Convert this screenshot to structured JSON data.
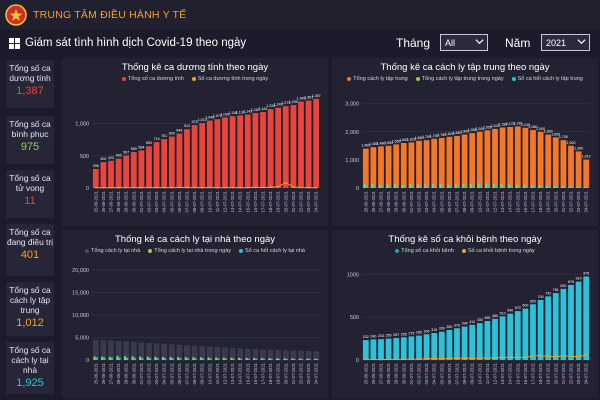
{
  "header": {
    "app_title": "TRUNG TÂM ĐIỀU HÀNH Y TẾ",
    "page_title": "Giám sát tình hình dịch Covid-19 theo ngày",
    "month_label": "Tháng",
    "month_value": "All",
    "year_label": "Năm",
    "year_value": "2021"
  },
  "kpis": [
    {
      "label": "Tổng số ca dương tính",
      "value": "1,387",
      "color": "#e8453c"
    },
    {
      "label": "Tổng số ca bình phục",
      "value": "975",
      "color": "#8fd14f"
    },
    {
      "label": "Tổng số ca tử vong",
      "value": "11",
      "color": "#e8453c"
    },
    {
      "label": "Tổng số ca đang điều trị",
      "value": "401",
      "color": "#f4a124"
    },
    {
      "label": "Tổng số ca cách ly tập trung",
      "value": "1,012",
      "color": "#f4a124"
    },
    {
      "label": "Tổng số ca cách ly tại nhà",
      "value": "1,925",
      "color": "#2dc2d8"
    }
  ],
  "colors": {
    "positive": "#e8453c",
    "positive_today": "#f4a124",
    "quarantine": "#f4772a",
    "quarantine_today": "#8fd14f",
    "released": "#2dc2d8",
    "home": "#3a3a4e",
    "home_today": "#8fd14f",
    "recovered": "#1da4b8",
    "recovered_today": "#f4a124"
  },
  "chart_data": [
    {
      "type": "bar",
      "title": "Thống kê ca dương tính theo ngày",
      "series": [
        {
          "name": "Tổng số ca dương tính",
          "values": [
            296,
            402,
            422,
            456,
            507,
            559,
            584,
            650,
            714,
            761,
            800,
            848,
            914,
            979,
            1010,
            1048,
            1070,
            1099,
            1118,
            1130,
            1143,
            1167,
            1181,
            1228,
            1249,
            1273,
            1290,
            1345,
            1361,
            1387
          ]
        },
        {
          "name": "Số ca dương tính trong ngày",
          "values": [
            5,
            4,
            6,
            5,
            7,
            6,
            3,
            8,
            6,
            7,
            5,
            9,
            6,
            7,
            5,
            8,
            4,
            6,
            7,
            5,
            6,
            9,
            8,
            12,
            20,
            84,
            15,
            8,
            6,
            4
          ]
        }
      ],
      "data_labels": [
        "296",
        "402",
        "422",
        "456",
        "507",
        "559",
        "584",
        "650",
        "714",
        "761",
        "800",
        "848",
        "914",
        "979",
        "1,010",
        "1,048",
        "1,070",
        "1,099",
        "1,118",
        "1,130",
        "1,143",
        "1,167",
        "1,181",
        "1,228",
        "1,249",
        "1,273",
        "1,290",
        "1,345",
        "1,361",
        "1,387"
      ],
      "yticks": [
        "0",
        "500",
        "1,000"
      ],
      "ylim": [
        0,
        1400
      ]
    },
    {
      "type": "bar",
      "title": "Thống kê ca cách ly tập trung theo ngày",
      "series": [
        {
          "name": "Tổng cách ly tập trung",
          "values": [
            1400,
            1450,
            1480,
            1500,
            1550,
            1600,
            1620,
            1680,
            1700,
            1750,
            1780,
            1820,
            1850,
            1900,
            1950,
            2000,
            2050,
            2100,
            2150,
            2170,
            2190,
            2140,
            2060,
            2000,
            1900,
            1800,
            1700,
            1500,
            1300,
            1012
          ]
        },
        {
          "name": "Tổng cách ly tập trung trong ngày",
          "values": [
            137,
            150,
            120,
            130,
            140,
            110,
            135,
            125,
            130,
            140,
            150,
            120,
            130,
            140,
            150,
            160,
            170,
            150,
            140,
            130,
            120,
            110,
            100,
            90,
            80,
            70,
            60,
            50,
            40,
            30
          ]
        },
        {
          "name": "Số ca hết cách ly tập trung",
          "values": [
            100,
            110,
            95,
            105,
            100,
            90,
            95,
            100,
            90,
            110,
            105,
            95,
            100,
            110,
            120,
            130,
            140,
            120,
            110,
            100,
            95,
            90,
            85,
            80,
            75,
            70,
            65,
            60,
            55,
            50
          ]
        }
      ],
      "data_labels": [
        "1,400",
        "1,450",
        "1,480",
        "1,500",
        "1,550",
        "1,600",
        "1,620",
        "1,680",
        "1,700",
        "1,750",
        "1,780",
        "1,820",
        "1,850",
        "1,900",
        "1,950",
        "2,000",
        "2,050",
        "2,100",
        "2,150",
        "2,170",
        "2,190",
        "2,140",
        "2,060",
        "2,000",
        "1,900",
        "1,800",
        "1,700",
        "1,500",
        "1,300",
        "1,012"
      ],
      "yticks": [
        "0",
        "1,000",
        "2,000",
        "3,000"
      ],
      "ylim": [
        0,
        3200
      ]
    },
    {
      "type": "bar",
      "title": "Thống kê ca cách ly tại nhà theo ngày",
      "series": [
        {
          "name": "Tổng cách ly tại nhà",
          "values": [
            4500,
            4400,
            4300,
            4200,
            4100,
            4000,
            3900,
            3800,
            3700,
            3600,
            3500,
            3400,
            3300,
            3200,
            3100,
            3000,
            2900,
            2800,
            2700,
            2600,
            2500,
            2400,
            2300,
            2250,
            2200,
            2150,
            2100,
            2050,
            2000,
            1925
          ]
        },
        {
          "name": "Tổng cách ly tại nhà trong ngày",
          "values": [
            800,
            750,
            700,
            900,
            850,
            800,
            760,
            720,
            700,
            680,
            650,
            640,
            620,
            600,
            580,
            560,
            540,
            520,
            500,
            480,
            460,
            440,
            420,
            400,
            380,
            360,
            340,
            320,
            300,
            280
          ]
        },
        {
          "name": "Số ca hết cách ly tại nhà",
          "values": [
            600,
            580,
            560,
            540,
            520,
            500,
            480,
            460,
            440,
            420,
            400,
            390,
            380,
            370,
            360,
            350,
            340,
            330,
            320,
            310,
            300,
            290,
            280,
            270,
            260,
            250,
            240,
            230,
            220,
            210
          ]
        }
      ],
      "yticks": [
        "0",
        "5,000",
        "10,000",
        "15,000",
        "20,000"
      ],
      "ylim": [
        0,
        20000
      ]
    },
    {
      "type": "bar",
      "title": "Thống kê số ca khỏi bệnh theo ngày",
      "series": [
        {
          "name": "Tổng số ca khỏi bệnh",
          "values": [
            232,
            240,
            243,
            250,
            257,
            265,
            275,
            285,
            300,
            315,
            330,
            350,
            370,
            390,
            410,
            430,
            455,
            480,
            510,
            540,
            570,
            600,
            650,
            700,
            742,
            781,
            830,
            876,
            914,
            975
          ]
        },
        {
          "name": "Số ca khỏi bệnh trong ngày",
          "values": [
            8,
            7,
            5,
            7,
            7,
            8,
            10,
            10,
            15,
            15,
            15,
            20,
            20,
            20,
            20,
            20,
            25,
            25,
            30,
            30,
            30,
            30,
            50,
            50,
            42,
            39,
            49,
            46,
            38,
            61
          ]
        }
      ],
      "data_labels": [
        "232",
        "240",
        "243",
        "250",
        "257",
        "265",
        "275",
        "285",
        "300",
        "315",
        "330",
        "350",
        "370",
        "390",
        "410",
        "430",
        "455",
        "480",
        "510",
        "540",
        "570",
        "600",
        "650",
        "700",
        "742",
        "781",
        "830",
        "876",
        "914",
        "975"
      ],
      "yticks": [
        "0",
        "500",
        "1000"
      ],
      "ylim": [
        0,
        1050
      ]
    }
  ],
  "dates": [
    "25-06-2021",
    "26-06-2021",
    "27-06-2021",
    "28-06-2021",
    "29-06-2021",
    "30-06-2021",
    "01-07-2021",
    "02-07-2021",
    "03-07-2021",
    "04-07-2021",
    "05-07-2021",
    "06-07-2021",
    "07-07-2021",
    "08-07-2021",
    "09-07-2021",
    "10-07-2021",
    "11-07-2021",
    "12-07-2021",
    "13-07-2021",
    "14-07-2021",
    "15-07-2021",
    "16-07-2021",
    "17-07-2021",
    "18-07-2021",
    "19-07-2021",
    "20-07-2021",
    "21-07-2021",
    "22-07-2021",
    "23-07-2021",
    "24-07-2021"
  ]
}
